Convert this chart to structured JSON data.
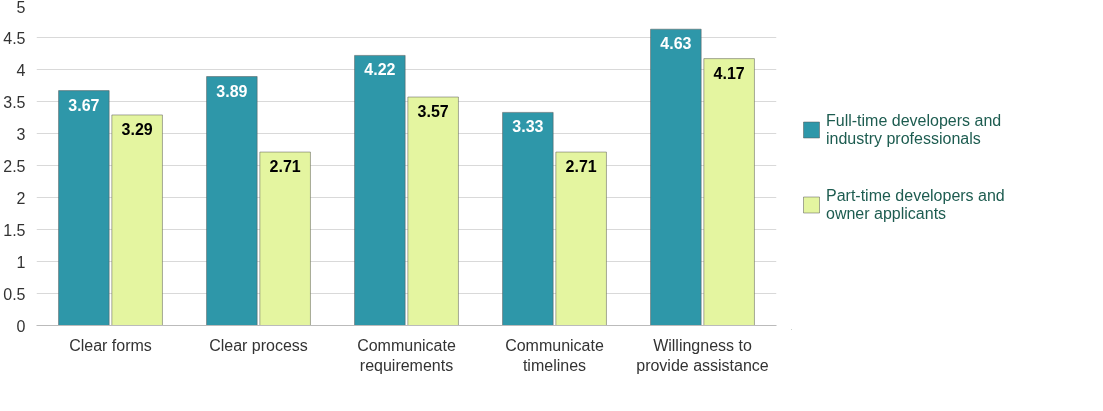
{
  "chart_data": {
    "type": "bar",
    "categories": [
      "Clear forms",
      "Clear process",
      "Communicate requirements",
      "Communicate timelines",
      "Willingness to provide assistance"
    ],
    "series": [
      {
        "name": "Full-time developers and industry professionals",
        "color": "#2e97a9",
        "values": [
          3.67,
          3.89,
          4.22,
          3.33,
          4.63
        ]
      },
      {
        "name": "Part-time developers and owner applicants",
        "color": "#e4f5a0",
        "values": [
          3.29,
          2.71,
          3.57,
          2.71,
          4.17
        ]
      }
    ],
    "ylim": [
      0,
      5
    ],
    "yticks": [
      0,
      0.5,
      1,
      1.5,
      2,
      2.5,
      3,
      3.5,
      4,
      4.5,
      5
    ],
    "grid": "y",
    "legend": "right",
    "data_labels": true
  }
}
